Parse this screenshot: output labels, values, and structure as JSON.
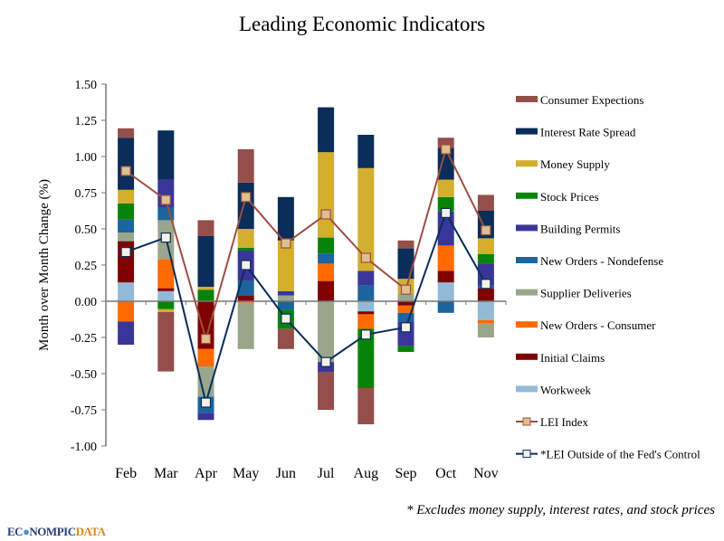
{
  "chart_data": {
    "type": "bar",
    "stacked": true,
    "title": "Leading Economic Indicators",
    "ylabel": "Month over Month Change (%)",
    "xlabel": "",
    "ylim": [
      -1.0,
      1.5
    ],
    "yticks": [
      "1.50",
      "1.25",
      "1.00",
      "0.75",
      "0.50",
      "0.25",
      "0.00",
      "-0.25",
      "-0.50",
      "-0.75",
      "-1.00"
    ],
    "ytick_values": [
      1.5,
      1.25,
      1.0,
      0.75,
      0.5,
      0.25,
      0,
      -0.25,
      -0.5,
      -0.75,
      -1.0
    ],
    "grid": false,
    "legend_placement": "right",
    "categories": [
      "Feb",
      "Mar",
      "Apr",
      "May",
      "Jun",
      "Jul",
      "Aug",
      "Sep",
      "Oct",
      "Nov"
    ],
    "series": [
      {
        "name": "Workweek",
        "color": "#92BAD6",
        "values": [
          0.13,
          0.07,
          0,
          0,
          0,
          0,
          -0.07,
          0,
          0.13,
          -0.13
        ]
      },
      {
        "name": "Initial Claims",
        "color": "#7F0000",
        "values": [
          0.285,
          0.02,
          -0.33,
          0.04,
          0,
          0.14,
          -0.02,
          -0.03,
          0.08,
          0.09
        ]
      },
      {
        "name": "New Orders - Consumer",
        "color": "#FF6A00",
        "values": [
          -0.14,
          0.2,
          -0.12,
          -0.01,
          0,
          0.12,
          -0.1,
          -0.05,
          0.175,
          -0.02
        ]
      },
      {
        "name": "Supplier Deliveries",
        "color": "#99A68C",
        "values": [
          0.06,
          0.27,
          -0.21,
          -0.32,
          0.04,
          -0.42,
          0,
          0.055,
          0,
          -0.1
        ]
      },
      {
        "name": "New Orders - Nondefense",
        "color": "#1B649E",
        "values": [
          0.09,
          0.09,
          -0.11,
          0.1,
          -0.06,
          0.07,
          0.11,
          -0.06,
          -0.08,
          0.02
        ]
      },
      {
        "name": "Building Permits",
        "color": "#3A3699",
        "values": [
          -0.16,
          0.19,
          -0.05,
          0.21,
          0.03,
          -0.07,
          0.1,
          -0.17,
          0.235,
          0.15
        ]
      },
      {
        "name": "Stock Prices",
        "color": "#078407",
        "values": [
          0.11,
          -0.055,
          0.08,
          0.02,
          -0.13,
          0.11,
          -0.41,
          -0.04,
          0.1,
          0.065
        ]
      },
      {
        "name": "Money Supply",
        "color": "#D4AE2D",
        "values": [
          0.095,
          -0.02,
          0.02,
          0.13,
          0.35,
          0.59,
          0.71,
          0.1,
          0.12,
          0.11
        ]
      },
      {
        "name": "Interest Rate Spread",
        "color": "#0A2D5A",
        "values": [
          0.36,
          0.34,
          0.35,
          0.32,
          0.3,
          0.31,
          0.23,
          0.21,
          0.22,
          0.19
        ]
      },
      {
        "name": "Consumer Expections",
        "color": "#954F4A",
        "values": [
          0.065,
          -0.41,
          0.11,
          0.23,
          -0.14,
          -0.26,
          -0.25,
          0.055,
          0.07,
          0.11
        ]
      }
    ],
    "lines": [
      {
        "name": "LEI Index",
        "color": "#9B4F42",
        "marker_fill": "#DCC090",
        "values": [
          0.9,
          0.7,
          -0.26,
          0.72,
          0.4,
          0.6,
          0.3,
          0.08,
          1.05,
          0.49
        ]
      },
      {
        "name": "*LEI Outside of the Fed's Control",
        "color": "#0A2D5A",
        "marker_fill": "#F4F1E8",
        "values": [
          0.34,
          0.44,
          -0.7,
          0.25,
          -0.12,
          -0.42,
          -0.23,
          -0.18,
          0.61,
          0.12
        ]
      }
    ],
    "footnote": "* Excludes money supply, interest rates, and stock prices"
  },
  "logo": {
    "part1": "ECONOMIC",
    "text": "ECONOMPICDATA",
    "a": "EC",
    "o": "O",
    "b": "NOMPIC",
    "c": "DATA"
  }
}
